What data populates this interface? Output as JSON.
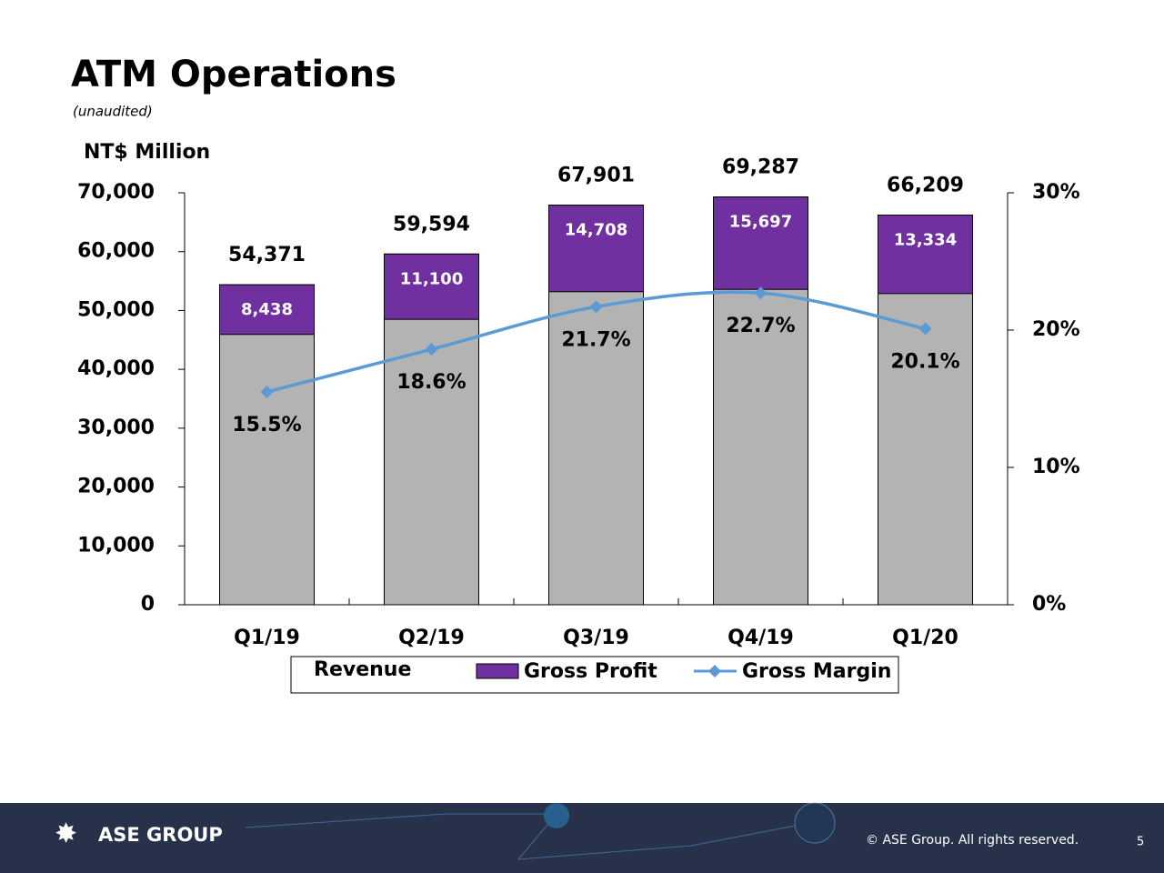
{
  "title": "ATM Operations",
  "subtitle": "(unaudited)",
  "chart_data": {
    "type": "bar",
    "y_label": "NT$ Million",
    "categories": [
      "Q1/19",
      "Q2/19",
      "Q3/19",
      "Q4/19",
      "Q1/20"
    ],
    "series": [
      {
        "name": "Revenue",
        "color": "#b3b3b3",
        "values": [
          54371,
          59594,
          67901,
          69287,
          66209
        ],
        "value_labels": [
          "54,371",
          "59,594",
          "67,901",
          "69,287",
          "66,209"
        ]
      },
      {
        "name": "Gross Profit",
        "color": "#7030a0",
        "values": [
          8438,
          11100,
          14708,
          15697,
          13334
        ],
        "value_labels": [
          "8,438",
          "11,100",
          "14,708",
          "15,697",
          "13,334"
        ]
      },
      {
        "name": "Gross Margin",
        "color": "#5b9bd5",
        "axis": "y2",
        "values": [
          15.5,
          18.6,
          21.7,
          22.7,
          20.1
        ],
        "value_labels": [
          "15.5%",
          "18.6%",
          "21.7%",
          "22.7%",
          "20.1%"
        ]
      }
    ],
    "ylim": [
      0,
      70000
    ],
    "yticks": [
      0,
      {
        "value": 10000,
        "label": "10,000"
      },
      {
        "value": 20000,
        "label": "20,000"
      },
      {
        "value": 30000,
        "label": "30,000"
      },
      {
        "value": 40000,
        "label": "40,000"
      },
      {
        "value": 50000,
        "label": "50,000"
      },
      {
        "value": 60000,
        "label": "60,000"
      },
      {
        "value": 70000,
        "label": "70,000"
      }
    ],
    "y2lim": [
      0,
      30
    ],
    "y2ticks": [
      {
        "value": 0,
        "label": "0%"
      },
      {
        "value": 10,
        "label": "10%"
      },
      {
        "value": 20,
        "label": "20%"
      },
      {
        "value": 30,
        "label": "30%"
      }
    ]
  },
  "footer": {
    "brand": "ASE GROUP",
    "copyright": "© ASE Group. All rights reserved.",
    "page": "5"
  }
}
